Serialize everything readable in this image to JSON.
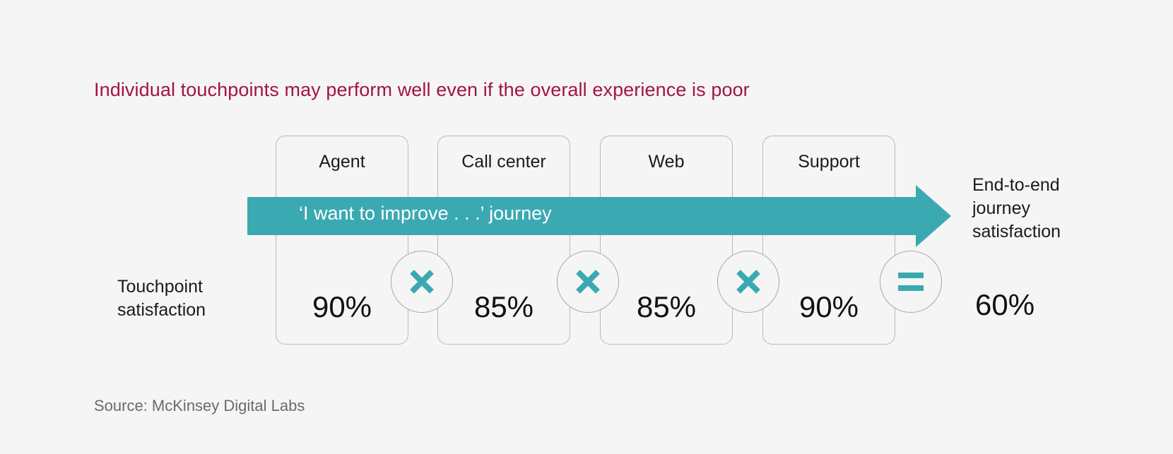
{
  "title": "Individual touchpoints may perform well even if the overall experience is poor",
  "journey_label": "‘I want to improve . . .’ journey",
  "row_label": [
    "Touchpoint",
    "satisfaction"
  ],
  "touchpoints": [
    {
      "label": "Agent",
      "value": "90%"
    },
    {
      "label": "Call center",
      "value": "85%"
    },
    {
      "label": "Web",
      "value": "85%"
    },
    {
      "label": "Support",
      "value": "90%"
    }
  ],
  "operators": [
    {
      "symbol": "multiply",
      "icon": "multiply-icon"
    },
    {
      "symbol": "multiply",
      "icon": "multiply-icon"
    },
    {
      "symbol": "multiply",
      "icon": "multiply-icon"
    },
    {
      "symbol": "equals",
      "icon": "equals-icon"
    }
  ],
  "result": {
    "label": [
      "End-to-end",
      "journey",
      "satisfaction"
    ],
    "value": "60%"
  },
  "source": "Source: McKinsey Digital Labs",
  "colors": {
    "title": "#a3134a",
    "accent": "#3ba9b2",
    "card_border": "#b9b9b9",
    "background": "#f5f5f5"
  }
}
